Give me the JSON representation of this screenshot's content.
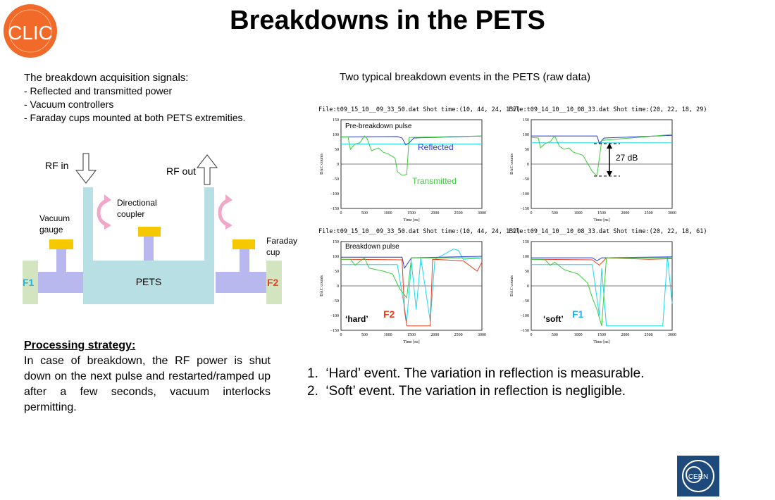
{
  "title": "Breakdowns in the PETS",
  "intro": {
    "heading": "The breakdown acquisition signals:",
    "items": [
      "- Reflected and transmitted power",
      "- Vacuum controllers",
      "- Faraday cups mounted at both PETS extremities."
    ]
  },
  "right_heading": "Two typical breakdown events in the PETS (raw data)",
  "diagram": {
    "rf_in": "RF in",
    "rf_out": "RF out",
    "directional_coupler": [
      "Directional",
      "coupler"
    ],
    "vacuum_gauge": [
      "Vacuum",
      "gauge"
    ],
    "faraday_cup": [
      "Faraday",
      "cup"
    ],
    "pets": "PETS",
    "f1": "F1",
    "f2": "F2"
  },
  "strategy": {
    "heading": "Processing strategy:",
    "text": "In case of breakdown, the RF power is shut down on the next pulse and restarted/ramped up after a few seconds, vacuum interlocks permitting."
  },
  "list": [
    {
      "num": "1.",
      "text": "‘Hard’ event. The variation in reflection is measurable."
    },
    {
      "num": "2.",
      "text": "‘Soft’ event. The variation in reflection is negligible."
    }
  ],
  "plots": {
    "files": [
      "File:t09_15_10__09_33_50.dat Shot time:(10, 44, 24, 137)",
      "File:t09_14_10__10_08_33.dat Shot time:(20, 22, 18, 29)",
      "File:t09_15_10__09_33_50.dat Shot time:(10, 44, 24, 132)",
      "File:t09_14_10__10_08_33.dat Shot time:(20, 22, 18, 61)"
    ],
    "yticks": [
      "150",
      "100",
      "50",
      "0",
      "−50",
      "−100",
      "−150"
    ],
    "xticks": [
      "0",
      "500",
      "1000",
      "1500",
      "2000",
      "2500",
      "3000"
    ],
    "ylabel": "DAC counts",
    "xlabel": "Time [ns]",
    "annotations": {
      "pre_breakdown": "Pre-breakdown pulse",
      "reflected": "Reflected",
      "transmitted": "Transmitted",
      "db": "27 dB",
      "breakdown": "Breakdown pulse",
      "hard": "‘hard’",
      "soft": "‘soft’",
      "f2": "F2",
      "f1": "F1"
    }
  },
  "logos": {
    "clic": "CLIC",
    "cern": "CERN"
  },
  "colors": {
    "pipe": "#b8e0e4",
    "flange": "#b8b8ee",
    "gauge": "#f5c800",
    "faraday": "#d3e4c0",
    "arrow": "#f0a8c8",
    "f1": "#19b5f0",
    "f2": "#e84020",
    "reflected": "#2a3cd0",
    "transmitted": "#3ccc3c"
  }
}
